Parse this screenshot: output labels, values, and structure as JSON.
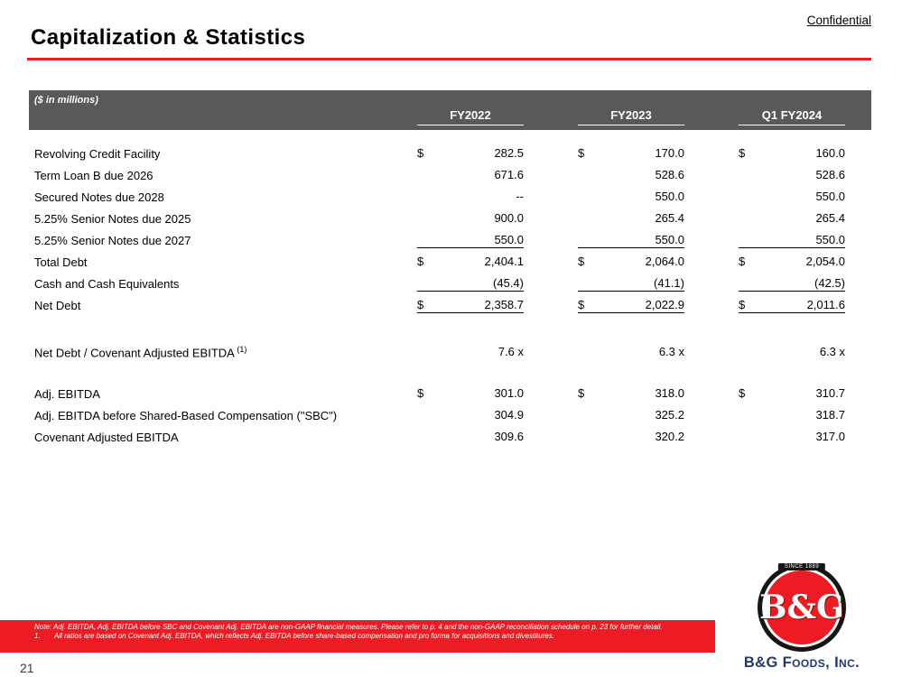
{
  "slide": {
    "confidential": "Confidential",
    "title": "Capitalization & Statistics",
    "page_number": "21"
  },
  "table": {
    "units_label": "($ in millions)",
    "currency": "$",
    "columns": [
      "FY2022",
      "FY2023",
      "Q1 FY2024"
    ],
    "rows": [
      {
        "label": "Revolving Credit Facility",
        "dollar": true,
        "values": [
          "282.5",
          "170.0",
          "160.0"
        ]
      },
      {
        "label": "Term Loan B due 2026",
        "dollar": false,
        "values": [
          "671.6",
          "528.6",
          "528.6"
        ]
      },
      {
        "label": "Secured Notes due 2028",
        "dollar": false,
        "values": [
          "--",
          "550.0",
          "550.0"
        ]
      },
      {
        "label": "5.25% Senior Notes due 2025",
        "dollar": false,
        "values": [
          "900.0",
          "265.4",
          "265.4"
        ]
      },
      {
        "label": "5.25% Senior Notes due 2027",
        "dollar": false,
        "values": [
          "550.0",
          "550.0",
          "550.0"
        ],
        "underline": true
      },
      {
        "label": "Total Debt",
        "dollar": true,
        "values": [
          "2,404.1",
          "2,064.0",
          "2,054.0"
        ]
      },
      {
        "label": "Cash and Cash Equivalents",
        "dollar": false,
        "values": [
          "(45.4)",
          "(41.1)",
          "(42.5)"
        ],
        "underline": true
      },
      {
        "label": "Net Debt",
        "dollar": true,
        "values": [
          "2,358.7",
          "2,022.9",
          "2,011.6"
        ],
        "underline": true
      },
      {
        "type": "spacer",
        "height": 28
      },
      {
        "label": "Net Debt / Covenant Adjusted EBITDA",
        "sup": "(1)",
        "dollar": false,
        "values": [
          "7.6 x",
          "6.3 x",
          "6.3 x"
        ]
      },
      {
        "type": "spacer",
        "height": 22
      },
      {
        "label": "Adj. EBITDA",
        "dollar": true,
        "values": [
          "301.0",
          "318.0",
          "310.7"
        ]
      },
      {
        "label": "Adj. EBITDA before Shared-Based Compensation (\"SBC\")",
        "dollar": false,
        "values": [
          "304.9",
          "325.2",
          "318.7"
        ]
      },
      {
        "label": "Covenant Adjusted EBITDA",
        "dollar": false,
        "values": [
          "309.6",
          "320.2",
          "317.0"
        ]
      }
    ]
  },
  "footer": {
    "note": "Note: Adj. EBITDA, Adj. EBITDA before SBC and Covenant Adj. EBITDA are non-GAAP financial measures. Please refer to p. 4 and the non-GAAP reconciliation schedule on p. 23 for further detail.",
    "footnote_number": "1.",
    "footnote": "All ratios are based on Covenant Adj. EBITDA, which reflects Adj. EBITDA before share-based compensation and pro forma for acquisitions and divestitures.",
    "logo": {
      "banner": "SINCE 1889",
      "brand": "B&G",
      "company": "B&G Foods, Inc."
    }
  },
  "colors": {
    "accent_red": "#ED1C24",
    "header_gray": "#58595B",
    "logo_navy": "#1E3A6E"
  }
}
